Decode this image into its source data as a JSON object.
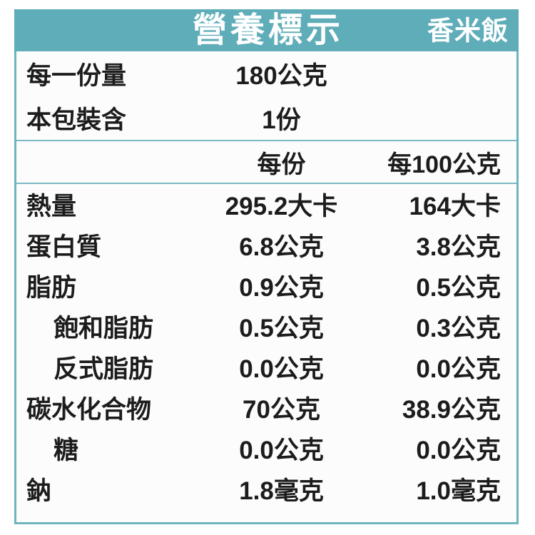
{
  "header": {
    "title": "營養標示",
    "product": "香米飯"
  },
  "serving_info": [
    {
      "label": "每一份量",
      "value": "180公克"
    },
    {
      "label": "本包裝含",
      "value": "1份"
    }
  ],
  "columns": {
    "per_serving": "每份",
    "per_100g": "每100公克"
  },
  "nutrients": [
    {
      "label": "熱量",
      "per_serving": "295.2大卡",
      "per_100g": "164大卡",
      "indent": false
    },
    {
      "label": "蛋白質",
      "per_serving": "6.8公克",
      "per_100g": "3.8公克",
      "indent": false
    },
    {
      "label": "脂肪",
      "per_serving": "0.9公克",
      "per_100g": "0.5公克",
      "indent": false
    },
    {
      "label": "飽和脂肪",
      "per_serving": "0.5公克",
      "per_100g": "0.3公克",
      "indent": true
    },
    {
      "label": "反式脂肪",
      "per_serving": "0.0公克",
      "per_100g": "0.0公克",
      "indent": true
    },
    {
      "label": "碳水化合物",
      "per_serving": "70公克",
      "per_100g": "38.9公克",
      "indent": false
    },
    {
      "label": "糖",
      "per_serving": "0.0公克",
      "per_100g": "0.0公克",
      "indent": true
    },
    {
      "label": "鈉",
      "per_serving": "1.8毫克",
      "per_100g": "1.0毫克",
      "indent": false
    }
  ],
  "colors": {
    "header_teal": "#5fadb9",
    "border_teal": "#6db4bf",
    "divider_teal": "#7cb9c3",
    "text": "#1c1c1c",
    "header_text": "#ffffff"
  }
}
